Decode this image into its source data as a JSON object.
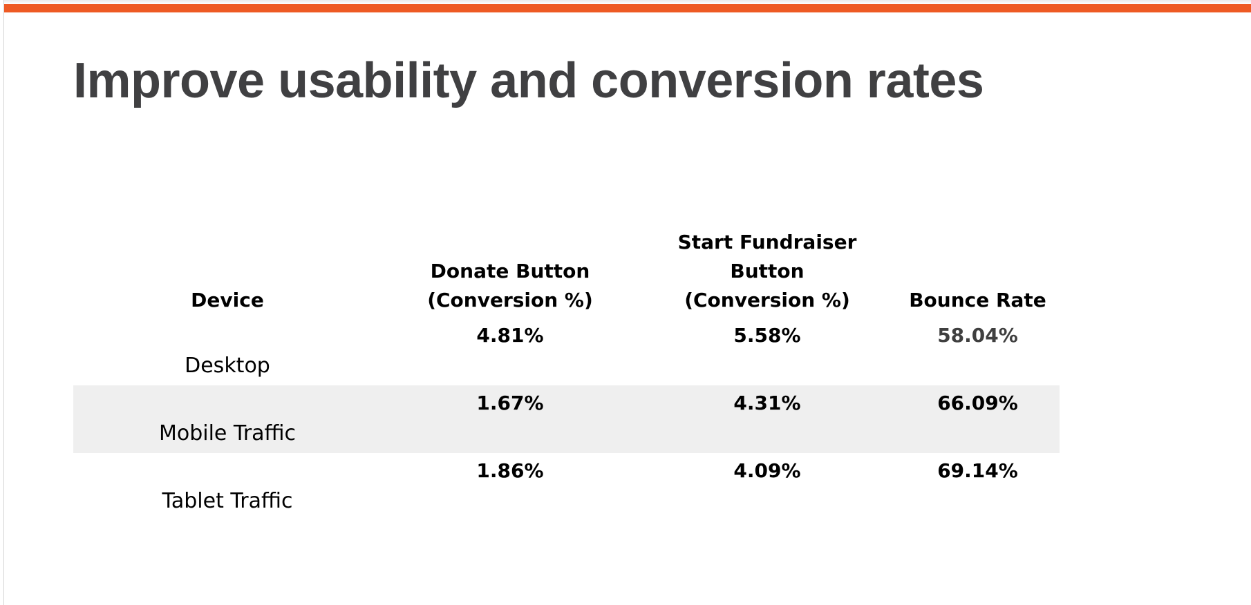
{
  "slide": {
    "title": "Improve usability and conversion rates",
    "accent_color": "#ee5a24",
    "title_color": "#404042",
    "row_shade_color": "#efefef"
  },
  "table": {
    "headers": {
      "device": "Device",
      "donate_line1": "Donate Button",
      "donate_line2": "(Conversion %)",
      "fund_line1": "Start Fundraiser",
      "fund_line2": "Button",
      "fund_line3": "(Conversion %)",
      "bounce": "Bounce Rate"
    },
    "rows": [
      {
        "device": "Desktop",
        "donate": "4.81%",
        "fundraiser": "5.58%",
        "bounce": "58.04%"
      },
      {
        "device": "Mobile Traffic",
        "donate": "1.67%",
        "fundraiser": "4.31%",
        "bounce": "66.09%"
      },
      {
        "device": "Tablet Traffic",
        "donate": "1.86%",
        "fundraiser": "4.09%",
        "bounce": "69.14%"
      }
    ]
  }
}
